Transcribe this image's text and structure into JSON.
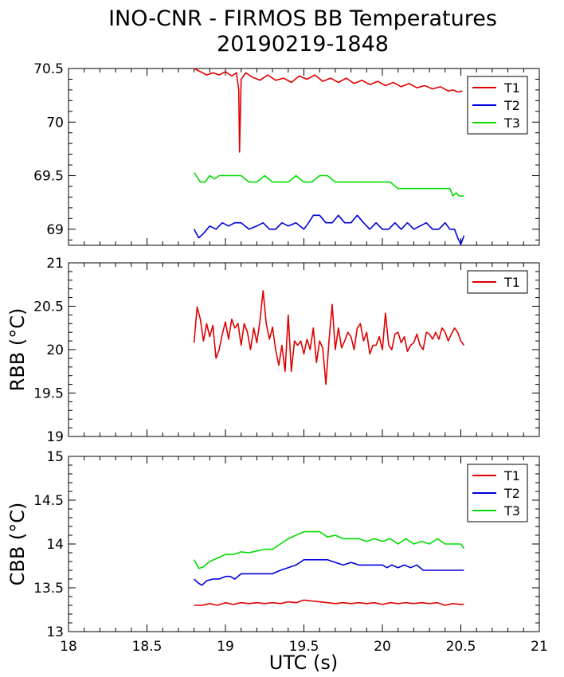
{
  "title": {
    "line1": "INO-CNR - FIRMOS BB Temperatures",
    "line2": "20190219-1848"
  },
  "xlabel": "UTC (s)",
  "colors": {
    "T1": "#e00000",
    "T2": "#0000dd",
    "T3": "#00dd00"
  },
  "chart_data": [
    {
      "type": "line",
      "panel": "top",
      "ylabel": "",
      "xlim": [
        18,
        21
      ],
      "ylim": [
        68.85,
        70.5
      ],
      "xticks": [
        "18",
        "18.5",
        "19",
        "19.5",
        "20",
        "20.5",
        "21"
      ],
      "yticks": [
        "69",
        "69.5",
        "70",
        "70.5"
      ],
      "legend": "top-right",
      "series": [
        {
          "name": "T1",
          "color": "#e00000",
          "x": [
            18.8,
            18.84,
            18.88,
            18.92,
            18.96,
            19.0,
            19.04,
            19.07,
            19.085,
            19.09,
            19.1,
            19.13,
            19.17,
            19.22,
            19.27,
            19.32,
            19.37,
            19.42,
            19.47,
            19.52,
            19.57,
            19.62,
            19.67,
            19.72,
            19.77,
            19.82,
            19.87,
            19.92,
            19.97,
            20.02,
            20.07,
            20.12,
            20.17,
            20.22,
            20.27,
            20.32,
            20.37,
            20.42,
            20.45,
            20.48,
            20.51
          ],
          "y": [
            70.5,
            70.47,
            70.44,
            70.46,
            70.44,
            70.47,
            70.43,
            70.46,
            70.3,
            69.72,
            70.4,
            70.46,
            70.42,
            70.39,
            70.44,
            70.39,
            70.41,
            70.37,
            70.43,
            70.4,
            70.44,
            70.38,
            70.41,
            70.37,
            70.41,
            70.36,
            70.39,
            70.35,
            70.38,
            70.34,
            70.37,
            70.33,
            70.36,
            70.32,
            70.34,
            70.31,
            70.33,
            70.29,
            70.3,
            70.28,
            70.29
          ]
        },
        {
          "name": "T2",
          "color": "#0000dd",
          "x": [
            18.8,
            18.83,
            18.86,
            18.9,
            18.94,
            18.98,
            19.02,
            19.06,
            19.1,
            19.15,
            19.2,
            19.24,
            19.28,
            19.32,
            19.36,
            19.4,
            19.45,
            19.5,
            19.53,
            19.56,
            19.6,
            19.64,
            19.68,
            19.72,
            19.76,
            19.8,
            19.84,
            19.88,
            19.92,
            19.96,
            20.0,
            20.04,
            20.08,
            20.12,
            20.16,
            20.2,
            20.24,
            20.28,
            20.32,
            20.36,
            20.4,
            20.43,
            20.46,
            20.48,
            20.5,
            20.52
          ],
          "y": [
            69.0,
            68.92,
            68.96,
            69.03,
            69.0,
            69.06,
            69.03,
            69.06,
            69.06,
            69.0,
            69.03,
            69.06,
            69.0,
            69.0,
            69.06,
            69.03,
            69.06,
            69.0,
            69.06,
            69.13,
            69.13,
            69.06,
            69.06,
            69.13,
            69.06,
            69.06,
            69.13,
            69.06,
            69.0,
            69.06,
            69.0,
            69.0,
            69.06,
            69.0,
            69.06,
            69.0,
            69.03,
            69.06,
            69.0,
            69.0,
            69.06,
            69.0,
            69.0,
            68.92,
            68.86,
            68.94
          ]
        },
        {
          "name": "T3",
          "color": "#00dd00",
          "x": [
            18.8,
            18.84,
            18.87,
            18.9,
            18.93,
            18.96,
            19.0,
            19.05,
            19.1,
            19.15,
            19.2,
            19.25,
            19.3,
            19.35,
            19.4,
            19.45,
            19.5,
            19.55,
            19.6,
            19.65,
            19.7,
            19.75,
            19.8,
            19.85,
            19.9,
            19.95,
            20.0,
            20.05,
            20.1,
            20.15,
            20.2,
            20.25,
            20.3,
            20.35,
            20.4,
            20.43,
            20.45,
            20.47,
            20.49,
            20.52
          ],
          "y": [
            69.53,
            69.44,
            69.44,
            69.5,
            69.47,
            69.5,
            69.5,
            69.5,
            69.5,
            69.44,
            69.44,
            69.5,
            69.44,
            69.44,
            69.44,
            69.5,
            69.44,
            69.44,
            69.5,
            69.5,
            69.44,
            69.44,
            69.44,
            69.44,
            69.44,
            69.44,
            69.44,
            69.44,
            69.38,
            69.38,
            69.38,
            69.38,
            69.38,
            69.38,
            69.38,
            69.38,
            69.31,
            69.34,
            69.31,
            69.31
          ]
        }
      ]
    },
    {
      "type": "line",
      "panel": "middle",
      "ylabel": "RBB (°C)",
      "xlim": [
        18,
        21
      ],
      "ylim": [
        19,
        21
      ],
      "xticks": [
        "18",
        "18.5",
        "19",
        "19.5",
        "20",
        "20.5",
        "21"
      ],
      "yticks": [
        "19",
        "19.5",
        "20",
        "20.5",
        "21"
      ],
      "legend": "top-right",
      "series": [
        {
          "name": "T1",
          "color": "#e00000",
          "x": [
            18.8,
            18.82,
            18.84,
            18.86,
            18.88,
            18.9,
            18.92,
            18.94,
            18.96,
            18.98,
            19.0,
            19.02,
            19.04,
            19.06,
            19.08,
            19.1,
            19.12,
            19.14,
            19.16,
            19.18,
            19.2,
            19.22,
            19.24,
            19.26,
            19.28,
            19.3,
            19.32,
            19.34,
            19.36,
            19.38,
            19.4,
            19.42,
            19.44,
            19.46,
            19.48,
            19.5,
            19.52,
            19.54,
            19.56,
            19.58,
            19.6,
            19.62,
            19.64,
            19.66,
            19.68,
            19.7,
            19.72,
            19.74,
            19.76,
            19.78,
            19.8,
            19.82,
            19.84,
            19.86,
            19.88,
            19.9,
            19.92,
            19.94,
            19.96,
            19.98,
            20.0,
            20.02,
            20.04,
            20.06,
            20.08,
            20.1,
            20.12,
            20.14,
            20.16,
            20.18,
            20.2,
            20.22,
            20.24,
            20.26,
            20.28,
            20.3,
            20.32,
            20.34,
            20.36,
            20.38,
            20.4,
            20.42,
            20.44,
            20.46,
            20.48,
            20.5,
            20.52
          ],
          "y": [
            20.08,
            20.49,
            20.35,
            20.1,
            20.3,
            20.15,
            20.28,
            19.9,
            20.0,
            20.18,
            20.32,
            20.12,
            20.35,
            20.25,
            20.3,
            20.05,
            20.3,
            20.2,
            20.0,
            20.25,
            20.08,
            20.33,
            20.68,
            20.3,
            20.12,
            20.26,
            20.0,
            19.82,
            20.05,
            19.75,
            20.4,
            19.75,
            20.1,
            20.05,
            20.1,
            19.95,
            20.12,
            20.0,
            20.25,
            19.85,
            20.1,
            20.02,
            19.6,
            20.1,
            20.52,
            20.0,
            20.25,
            20.02,
            20.1,
            20.2,
            20.15,
            20.0,
            20.25,
            20.3,
            20.1,
            20.2,
            19.95,
            20.05,
            20.05,
            20.15,
            20.0,
            20.42,
            20.05,
            20.0,
            20.18,
            20.2,
            20.08,
            20.15,
            19.98,
            20.05,
            20.08,
            20.18,
            20.05,
            20.0,
            20.2,
            20.18,
            20.12,
            20.2,
            20.12,
            20.25,
            20.2,
            20.1,
            20.18,
            20.25,
            20.2,
            20.1,
            20.05
          ]
        }
      ]
    },
    {
      "type": "line",
      "panel": "bottom",
      "ylabel": "CBB (°C)",
      "xlim": [
        18,
        21
      ],
      "ylim": [
        13,
        15
      ],
      "xticks": [
        "18",
        "18.5",
        "19",
        "19.5",
        "20",
        "20.5",
        "21"
      ],
      "yticks": [
        "13",
        "13.5",
        "14",
        "14.5",
        "15"
      ],
      "legend": "top-right",
      "series": [
        {
          "name": "T1",
          "color": "#e00000",
          "x": [
            18.8,
            18.85,
            18.9,
            18.95,
            19.0,
            19.05,
            19.1,
            19.15,
            19.2,
            19.25,
            19.3,
            19.35,
            19.4,
            19.45,
            19.5,
            19.55,
            19.6,
            19.65,
            19.7,
            19.75,
            19.8,
            19.85,
            19.9,
            19.95,
            20.0,
            20.05,
            20.1,
            20.15,
            20.2,
            20.25,
            20.3,
            20.35,
            20.4,
            20.45,
            20.5,
            20.52
          ],
          "y": [
            13.3,
            13.3,
            13.32,
            13.3,
            13.33,
            13.31,
            13.33,
            13.32,
            13.33,
            13.32,
            13.33,
            13.32,
            13.34,
            13.33,
            13.36,
            13.35,
            13.34,
            13.33,
            13.32,
            13.33,
            13.32,
            13.33,
            13.32,
            13.33,
            13.31,
            13.33,
            13.32,
            13.33,
            13.32,
            13.33,
            13.32,
            13.33,
            13.3,
            13.32,
            13.31,
            13.31
          ]
        },
        {
          "name": "T2",
          "color": "#0000dd",
          "x": [
            18.8,
            18.83,
            18.85,
            18.88,
            18.92,
            18.96,
            19.0,
            19.03,
            19.06,
            19.1,
            19.2,
            19.3,
            19.35,
            19.4,
            19.45,
            19.5,
            19.55,
            19.6,
            19.65,
            19.7,
            19.75,
            19.8,
            19.85,
            19.9,
            19.95,
            20.0,
            20.03,
            20.06,
            20.1,
            20.14,
            20.18,
            20.22,
            20.26,
            20.3,
            20.4,
            20.5,
            20.52
          ],
          "y": [
            13.6,
            13.55,
            13.53,
            13.58,
            13.6,
            13.6,
            13.63,
            13.63,
            13.6,
            13.66,
            13.66,
            13.66,
            13.7,
            13.73,
            13.76,
            13.82,
            13.82,
            13.82,
            13.82,
            13.79,
            13.76,
            13.79,
            13.76,
            13.76,
            13.76,
            13.76,
            13.73,
            13.76,
            13.73,
            13.76,
            13.73,
            13.76,
            13.7,
            13.7,
            13.7,
            13.7,
            13.7
          ]
        },
        {
          "name": "T3",
          "color": "#00dd00",
          "x": [
            18.8,
            18.83,
            18.86,
            18.9,
            18.95,
            19.0,
            19.05,
            19.1,
            19.15,
            19.2,
            19.25,
            19.3,
            19.35,
            19.4,
            19.45,
            19.5,
            19.55,
            19.6,
            19.65,
            19.7,
            19.75,
            19.8,
            19.85,
            19.9,
            19.95,
            20.0,
            20.05,
            20.1,
            20.15,
            20.2,
            20.25,
            20.3,
            20.35,
            20.4,
            20.45,
            20.5,
            20.52
          ],
          "y": [
            13.82,
            13.72,
            13.74,
            13.8,
            13.84,
            13.88,
            13.88,
            13.91,
            13.9,
            13.92,
            13.94,
            13.94,
            14.0,
            14.06,
            14.1,
            14.14,
            14.14,
            14.14,
            14.08,
            14.1,
            14.06,
            14.06,
            14.06,
            14.03,
            14.06,
            14.03,
            14.06,
            14.0,
            14.06,
            14.0,
            14.03,
            14.0,
            14.06,
            14.0,
            14.0,
            14.0,
            13.95
          ]
        }
      ]
    }
  ]
}
